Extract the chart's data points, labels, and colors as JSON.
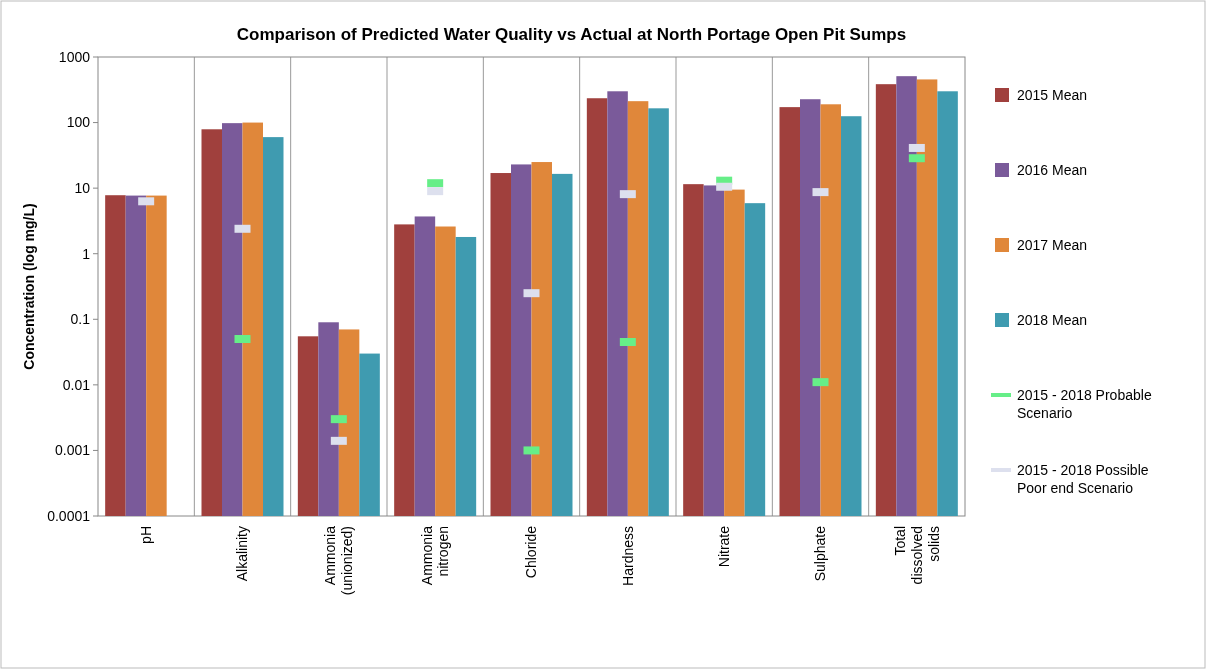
{
  "chart_data": {
    "type": "bar",
    "title": "Comparison of Predicted Water Quality vs Actual at North Portage Open Pit Sumps",
    "ylabel": "Concentration (log mg/L)",
    "categories": [
      "pH",
      "Alkalinity",
      "Ammonia (unionized)",
      "Ammonia nitrogen",
      "Chloride",
      "Hardness",
      "Nitrate",
      "Sulphate",
      "Total dissolved solids"
    ],
    "series": [
      {
        "name": "2015 Mean",
        "color": "#a0403d",
        "values": [
          7.8,
          79,
          0.055,
          2.8,
          17,
          235,
          11.5,
          172,
          385
        ]
      },
      {
        "name": "2016 Mean",
        "color": "#7a5a9a",
        "values": [
          7.7,
          98,
          0.09,
          3.7,
          23,
          300,
          11,
          227,
          510
        ]
      },
      {
        "name": "2017 Mean",
        "color": "#e0873a",
        "values": [
          7.7,
          100,
          0.07,
          2.6,
          25,
          212,
          9.5,
          190,
          455
        ]
      },
      {
        "name": "2018 Mean",
        "color": "#3f9bb0",
        "values": [
          null,
          60,
          0.03,
          1.8,
          16.5,
          165,
          5.9,
          125,
          300
        ]
      },
      {
        "name": "2015 - 2018 Probable Scenario",
        "type": "scatter",
        "color": "#66ee88",
        "values": [
          null,
          0.05,
          0.003,
          11.9,
          0.001,
          0.045,
          13,
          0.011,
          28.6
        ]
      },
      {
        "name": "2015 - 2018 Possible Poor end Scenario",
        "type": "scatter",
        "color": "#dde0ee",
        "values": [
          6.3,
          2.4,
          0.0014,
          9,
          0.25,
          8.1,
          10.5,
          8.7,
          41
        ]
      }
    ],
    "log": "y",
    "ylim": [
      0.0001,
      1000
    ],
    "yticks": [
      0.0001,
      0.001,
      0.01,
      0.1,
      1,
      10,
      100,
      1000
    ],
    "grid": "x",
    "legend": "right",
    "marker": "square"
  }
}
